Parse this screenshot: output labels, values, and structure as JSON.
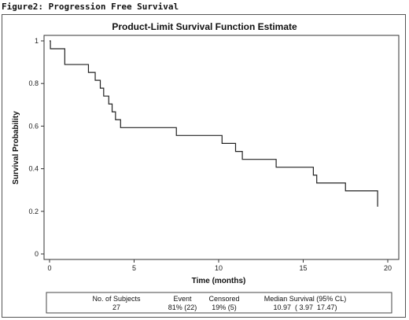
{
  "figure_caption": "Figure2: Progression Free Survival",
  "chart_data": {
    "type": "line",
    "title": "Product-Limit Survival Function Estimate",
    "xlabel": "Time (months)",
    "ylabel": "Survival Probability",
    "xlim": [
      0,
      20
    ],
    "ylim": [
      0,
      1
    ],
    "xticks": [
      0,
      5,
      10,
      15,
      20
    ],
    "yticks": [
      0,
      0.2,
      0.4,
      0.6,
      0.8,
      1
    ],
    "ytick_labels": [
      "0",
      "0.2",
      "0.4",
      "0.6",
      "0.8",
      "1"
    ],
    "grid": false,
    "series": [
      {
        "step": true,
        "x": [
          0,
          0.05,
          0.9,
          2.3,
          2.7,
          3.0,
          3.2,
          3.5,
          3.7,
          3.9,
          4.2,
          4.5,
          4.8,
          7.5,
          10.2,
          11.0,
          11.4,
          13.4,
          15.6,
          15.8,
          17.5,
          19.4,
          19.4
        ],
        "y": [
          1.0,
          0.963,
          0.889,
          0.852,
          0.815,
          0.778,
          0.741,
          0.704,
          0.667,
          0.63,
          0.593,
          0.593,
          0.593,
          0.556,
          0.519,
          0.481,
          0.444,
          0.407,
          0.37,
          0.333,
          0.296,
          0.259,
          0.222
        ]
      }
    ],
    "stats_table": {
      "headers": [
        "No. of Subjects",
        "Event",
        "Censored",
        "Median Survival (95% CL)"
      ],
      "values": [
        "27",
        "81% (22)",
        "19% (5)",
        "10.97  ( 3.97  17.47)"
      ]
    }
  }
}
